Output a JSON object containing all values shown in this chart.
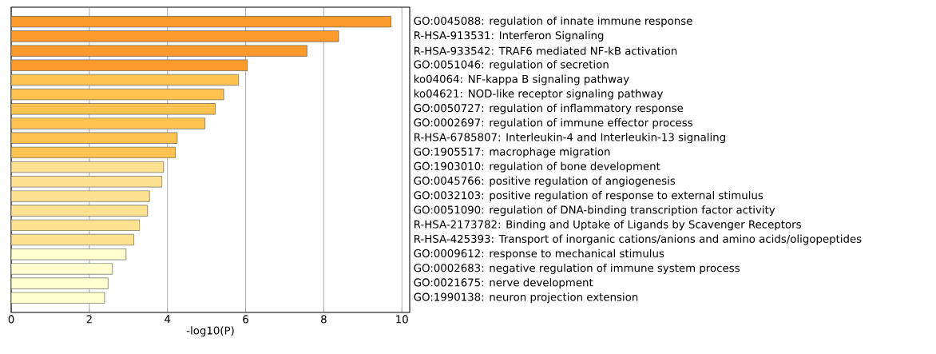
{
  "chart_data": {
    "type": "bar",
    "orientation": "horizontal",
    "xlabel": "-log10(P)",
    "categories": [
      "GO:0045088: regulation of innate immune response",
      "R-HSA-913531: Interferon Signaling",
      "R-HSA-933542: TRAF6 mediated NF-kB activation",
      "GO:0051046: regulation of secretion",
      "ko04064: NF-kappa B signaling pathway",
      "ko04621: NOD-like receptor signaling pathway",
      "GO:0050727: regulation of inflammatory response",
      "GO:0002697: regulation of immune effector process",
      "R-HSA-6785807: Interleukin-4 and Interleukin-13 signaling",
      "GO:1905517: macrophage migration",
      "GO:1903010: regulation of bone development",
      "GO:0045766: positive regulation of angiogenesis",
      "GO:0032103: positive regulation of response to external stimulus",
      "GO:0051090: regulation of DNA-binding transcription factor activity",
      "R-HSA-2173782: Binding and Uptake of Ligands by Scavenger Receptors",
      "R-HSA-425393: Transport of inorganic cations/anions and amino acids/oligopeptides",
      "GO:0009612: response to mechanical stimulus",
      "GO:0002683: negative regulation of immune system process",
      "GO:0021675: nerve development",
      "GO:1990138: neuron projection extension"
    ],
    "values": [
      9.72,
      8.38,
      7.57,
      6.05,
      5.82,
      5.44,
      5.22,
      4.96,
      4.25,
      4.2,
      3.9,
      3.86,
      3.54,
      3.49,
      3.29,
      3.14,
      2.94,
      2.59,
      2.48,
      2.39
    ],
    "colors": [
      "#fd9a2c",
      "#fd9a2c",
      "#fd9a2c",
      "#fd9a2c",
      "#fec250",
      "#fec250",
      "#fec250",
      "#fec250",
      "#fec250",
      "#fec250",
      "#fee191",
      "#fee191",
      "#fee191",
      "#fee191",
      "#fee191",
      "#fee191",
      "#ffffcf",
      "#ffffcf",
      "#ffffcf",
      "#ffffcf"
    ],
    "xlim": [
      0,
      10.2
    ],
    "xticks": [
      0,
      2,
      4,
      6,
      8,
      10
    ],
    "grid": "x"
  }
}
